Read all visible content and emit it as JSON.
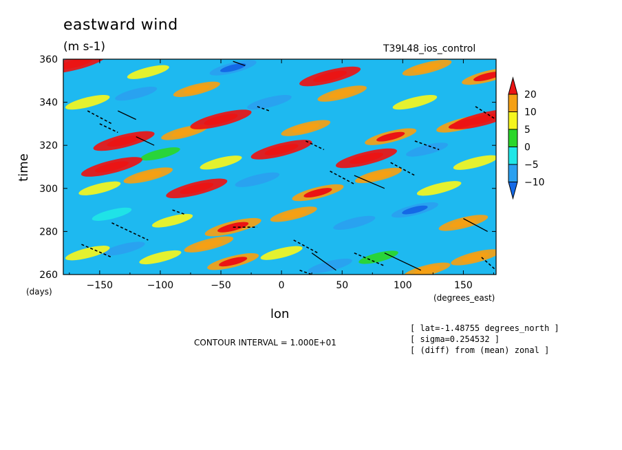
{
  "header": {
    "title": "eastward wind",
    "units": "(m s-1)",
    "run": "T39L48_ios_control"
  },
  "axes": {
    "ylabel": "time",
    "yunit": "(days)",
    "xlabel": "lon",
    "xunit": "(degrees_east)"
  },
  "footer": {
    "contour_interval": "CONTOUR INTERVAL = 1.000E+01",
    "notes": [
      "[ lat=-1.48755 degrees_north ]",
      "[ sigma=0.254532 ]",
      "[ (diff) from (mean) zonal ]"
    ]
  },
  "colors": {
    "lt_m10": "#1469e6",
    "m10_m5": "#2aa0f0",
    "m5_0": "#20e6e6",
    "0_5": "#2ad62a",
    "5_10": "#f5f51e",
    "10_20": "#f5a014",
    "gt_20": "#eb1414"
  },
  "chart_data": {
    "type": "heatmap",
    "title": "eastward wind",
    "units": "(m s-1)",
    "xlabel": "lon",
    "ylabel": "time",
    "xlim": [
      -180,
      177
    ],
    "ylim": [
      260,
      360
    ],
    "xticks": [
      -150,
      -100,
      -50,
      0,
      50,
      100,
      150
    ],
    "yticks": [
      260,
      280,
      300,
      320,
      340,
      360
    ],
    "colorbar": {
      "levels": [
        -10,
        -5,
        0,
        5,
        10,
        20
      ],
      "labels": [
        "20",
        "10",
        "5",
        "0",
        "-5",
        "-10"
      ]
    },
    "contour_interval": 10,
    "field": [
      {
        "lon": -160,
        "time": 270,
        "value": 8
      },
      {
        "lon": -130,
        "time": 272,
        "value": -6
      },
      {
        "lon": -100,
        "time": 268,
        "value": 6
      },
      {
        "lon": -60,
        "time": 274,
        "value": 12
      },
      {
        "lon": -40,
        "time": 266,
        "value": 14
      },
      {
        "lon": 0,
        "time": 270,
        "value": 6
      },
      {
        "lon": 40,
        "time": 264,
        "value": -8
      },
      {
        "lon": 80,
        "time": 268,
        "value": 4
      },
      {
        "lon": 120,
        "time": 262,
        "value": 10
      },
      {
        "lon": 160,
        "time": 268,
        "value": 12
      },
      {
        "lon": -140,
        "time": 288,
        "value": -4
      },
      {
        "lon": -90,
        "time": 285,
        "value": 5
      },
      {
        "lon": -40,
        "time": 282,
        "value": 18
      },
      {
        "lon": 10,
        "time": 288,
        "value": 10
      },
      {
        "lon": 60,
        "time": 284,
        "value": -6
      },
      {
        "lon": 110,
        "time": 290,
        "value": -10
      },
      {
        "lon": 150,
        "time": 284,
        "value": 12
      },
      {
        "lon": -150,
        "time": 300,
        "value": 6
      },
      {
        "lon": -110,
        "time": 306,
        "value": 12
      },
      {
        "lon": -70,
        "time": 300,
        "value": 22
      },
      {
        "lon": -20,
        "time": 304,
        "value": -8
      },
      {
        "lon": 30,
        "time": 298,
        "value": 14
      },
      {
        "lon": 80,
        "time": 306,
        "value": 10
      },
      {
        "lon": 130,
        "time": 300,
        "value": 8
      },
      {
        "lon": -140,
        "time": 310,
        "value": 22
      },
      {
        "lon": -100,
        "time": 316,
        "value": 4
      },
      {
        "lon": -50,
        "time": 312,
        "value": 6
      },
      {
        "lon": 0,
        "time": 318,
        "value": 22
      },
      {
        "lon": 70,
        "time": 314,
        "value": 22
      },
      {
        "lon": 120,
        "time": 318,
        "value": -6
      },
      {
        "lon": 160,
        "time": 312,
        "value": 8
      },
      {
        "lon": -130,
        "time": 322,
        "value": 22
      },
      {
        "lon": -80,
        "time": 326,
        "value": 10
      },
      {
        "lon": -50,
        "time": 332,
        "value": 22
      },
      {
        "lon": 20,
        "time": 328,
        "value": 12
      },
      {
        "lon": 90,
        "time": 324,
        "value": 14
      },
      {
        "lon": 150,
        "time": 330,
        "value": 16
      },
      {
        "lon": 165,
        "time": 332,
        "value": 22
      },
      {
        "lon": -160,
        "time": 340,
        "value": 8
      },
      {
        "lon": -120,
        "time": 344,
        "value": -6
      },
      {
        "lon": -70,
        "time": 346,
        "value": 10
      },
      {
        "lon": -10,
        "time": 340,
        "value": -8
      },
      {
        "lon": 50,
        "time": 344,
        "value": 12
      },
      {
        "lon": 110,
        "time": 340,
        "value": 8
      },
      {
        "lon": -170,
        "time": 358,
        "value": 22
      },
      {
        "lon": -110,
        "time": 354,
        "value": 6
      },
      {
        "lon": -40,
        "time": 356,
        "value": -10
      },
      {
        "lon": 40,
        "time": 352,
        "value": 22
      },
      {
        "lon": 120,
        "time": 356,
        "value": 12
      },
      {
        "lon": 170,
        "time": 352,
        "value": 14
      }
    ]
  }
}
